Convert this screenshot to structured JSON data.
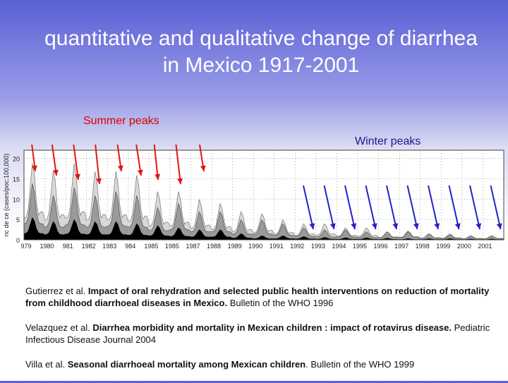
{
  "title": "quantitative and qualitative change of diarrhea in Mexico 1917-2001",
  "labels": {
    "summer": "Summer peaks",
    "winter": "Winter peaks"
  },
  "colors": {
    "summer_arrow": "#e31414",
    "winter_arrow": "#2323c8"
  },
  "chart_data": {
    "type": "area",
    "ylabel": "nc de ce (cases/poc:100,000)",
    "ytick_labels": [
      "0",
      "5",
      "10",
      "15",
      "20"
    ],
    "xtick_labels": [
      "979",
      "1980",
      "981",
      "1982",
      "1983",
      "984",
      "1985",
      "1985",
      "1987",
      "1988",
      "1989",
      "1990",
      "1991",
      "1992",
      "1993",
      "1994",
      "1995",
      "1996",
      "1997",
      "1998",
      "1999",
      "2000",
      "2001"
    ],
    "series": [
      {
        "peaks": [
          19,
          17,
          19,
          17,
          17,
          16,
          12,
          12,
          10,
          9,
          7,
          6.5,
          5,
          4,
          4,
          3,
          3,
          2,
          2.2,
          1.5,
          1.5,
          1,
          1
        ]
      },
      {
        "peaks": [
          14,
          11,
          13,
          11,
          12,
          11,
          8,
          9,
          7,
          7,
          5,
          5,
          4,
          3,
          2.5,
          2.5,
          2,
          2,
          2,
          1.5,
          1.2,
          1,
          1
        ]
      },
      {
        "peaks": [
          5.5,
          4.5,
          5,
          4.5,
          4.5,
          4,
          3.5,
          3,
          2.5,
          2.5,
          1.5,
          1,
          1,
          0.8,
          0.6,
          0.5,
          0.5,
          0.4,
          0.3,
          0.3,
          0.3,
          0.2,
          0.2
        ]
      }
    ],
    "summer_arrows": 9,
    "winter_arrows": 10
  },
  "references": [
    {
      "authors": "Gutierrez et al. ",
      "title": "Impact of oral rehydration and selected public health interventions on reduction of mortality from childhood diarrhoeal diseases in Mexico.",
      "source": " Bulletin of the WHO 1996"
    },
    {
      "authors": "Velazquez et al. ",
      "title": "Diarrhea morbidity and mortality in Mexican children : impact of rotavirus disease.",
      "source": " Pediatric Infectious Disease Journal 2004"
    },
    {
      "authors": "Villa et al. ",
      "title": "Seasonal diarrhoeal mortality among Mexican children",
      "source": ". Bulletin of the WHO 1999"
    }
  ]
}
